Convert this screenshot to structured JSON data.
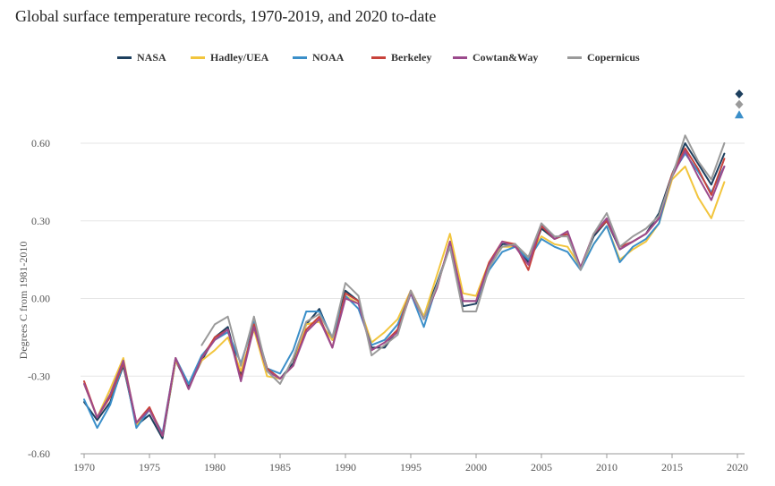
{
  "title": "Global surface temperature records, 1970-2019, and 2020 to-date",
  "chart_data": {
    "type": "line",
    "title": "Global surface temperature records, 1970-2019, and 2020 to-date",
    "xlabel": "",
    "ylabel": "Degrees C from 1981-2010",
    "xlim": [
      1970,
      2020
    ],
    "ylim": [
      -0.6,
      0.6
    ],
    "x_ticks": [
      1970,
      1975,
      1980,
      1985,
      1990,
      1995,
      2000,
      2005,
      2010,
      2015,
      2020
    ],
    "x_tick_labels": [
      "1970",
      "1975",
      "1980",
      "1985",
      "1990",
      "1995",
      "2000",
      "2005",
      "2010",
      "2015",
      "2020"
    ],
    "y_ticks": [
      -0.6,
      -0.3,
      0.0,
      0.3,
      0.6
    ],
    "y_tick_labels": [
      "-0.60",
      "-0.30",
      "0.00",
      "0.30",
      "0.60"
    ],
    "grid": "horizontal",
    "legend_position": "top-center",
    "x": [
      1970,
      1971,
      1972,
      1973,
      1974,
      1975,
      1976,
      1977,
      1978,
      1979,
      1980,
      1981,
      1982,
      1983,
      1984,
      1985,
      1986,
      1987,
      1988,
      1989,
      1990,
      1991,
      1992,
      1993,
      1994,
      1995,
      1996,
      1997,
      1998,
      1999,
      2000,
      2001,
      2002,
      2003,
      2004,
      2005,
      2006,
      2007,
      2008,
      2009,
      2010,
      2011,
      2012,
      2013,
      2014,
      2015,
      2016,
      2017,
      2018,
      2019
    ],
    "series": [
      {
        "name": "NASA",
        "color": "#1d3f5e",
        "values": [
          -0.4,
          -0.47,
          -0.4,
          -0.26,
          -0.49,
          -0.45,
          -0.54,
          -0.24,
          -0.34,
          -0.24,
          -0.15,
          -0.11,
          -0.3,
          -0.1,
          -0.27,
          -0.31,
          -0.25,
          -0.1,
          -0.04,
          -0.16,
          0.03,
          -0.01,
          -0.19,
          -0.19,
          -0.12,
          0.03,
          -0.07,
          0.06,
          0.2,
          -0.03,
          -0.02,
          0.13,
          0.21,
          0.21,
          0.14,
          0.27,
          0.23,
          0.25,
          0.12,
          0.24,
          0.3,
          0.19,
          0.22,
          0.25,
          0.33,
          0.48,
          0.6,
          0.52,
          0.44,
          0.56
        ]
      },
      {
        "name": "Hadley/UEA",
        "color": "#f2c53d",
        "values": [
          -0.33,
          -0.46,
          -0.35,
          -0.23,
          -0.49,
          -0.43,
          -0.53,
          -0.24,
          -0.33,
          -0.24,
          -0.2,
          -0.15,
          -0.28,
          -0.12,
          -0.3,
          -0.31,
          -0.26,
          -0.1,
          -0.09,
          -0.16,
          0.01,
          -0.02,
          -0.17,
          -0.13,
          -0.08,
          0.03,
          -0.07,
          0.09,
          0.25,
          0.02,
          0.01,
          0.14,
          0.2,
          0.2,
          0.16,
          0.24,
          0.21,
          0.2,
          0.12,
          0.21,
          0.28,
          0.15,
          0.19,
          0.22,
          0.29,
          0.46,
          0.51,
          0.39,
          0.31,
          0.45
        ]
      },
      {
        "name": "NOAA",
        "color": "#3b8fc9",
        "values": [
          -0.39,
          -0.5,
          -0.41,
          -0.25,
          -0.5,
          -0.43,
          -0.52,
          -0.23,
          -0.33,
          -0.22,
          -0.16,
          -0.13,
          -0.25,
          -0.09,
          -0.27,
          -0.29,
          -0.2,
          -0.05,
          -0.05,
          -0.15,
          0.01,
          -0.04,
          -0.18,
          -0.16,
          -0.1,
          0.02,
          -0.11,
          0.05,
          0.21,
          -0.01,
          -0.01,
          0.11,
          0.18,
          0.2,
          0.15,
          0.23,
          0.2,
          0.18,
          0.11,
          0.21,
          0.28,
          0.14,
          0.2,
          0.23,
          0.29,
          0.48,
          0.56,
          0.49,
          0.41,
          0.51
        ]
      },
      {
        "name": "Berkeley",
        "color": "#c8423b",
        "values": [
          -0.32,
          -0.46,
          -0.38,
          -0.25,
          -0.48,
          -0.42,
          -0.53,
          -0.23,
          -0.35,
          -0.23,
          -0.15,
          -0.12,
          -0.31,
          -0.1,
          -0.27,
          -0.31,
          -0.26,
          -0.12,
          -0.07,
          -0.19,
          0.02,
          -0.01,
          -0.2,
          -0.17,
          -0.12,
          0.03,
          -0.08,
          0.04,
          0.22,
          -0.01,
          -0.01,
          0.14,
          0.22,
          0.21,
          0.11,
          0.28,
          0.23,
          0.25,
          0.12,
          0.25,
          0.3,
          0.2,
          0.22,
          0.25,
          0.31,
          0.48,
          0.58,
          0.5,
          0.4,
          0.54
        ]
      },
      {
        "name": "Cowtan&Way",
        "color": "#9b4a8c",
        "values": [
          -0.33,
          -0.46,
          -0.37,
          -0.24,
          -0.48,
          -0.43,
          -0.53,
          -0.23,
          -0.35,
          -0.23,
          -0.16,
          -0.12,
          -0.32,
          -0.11,
          -0.28,
          -0.31,
          -0.26,
          -0.13,
          -0.08,
          -0.19,
          0.0,
          -0.02,
          -0.2,
          -0.17,
          -0.13,
          0.02,
          -0.08,
          0.04,
          0.22,
          -0.01,
          -0.01,
          0.13,
          0.22,
          0.2,
          0.13,
          0.29,
          0.23,
          0.26,
          0.12,
          0.25,
          0.31,
          0.19,
          0.22,
          0.25,
          0.31,
          0.47,
          0.57,
          0.47,
          0.38,
          0.51
        ]
      },
      {
        "name": "Copernicus",
        "color": "#9a9a9a",
        "values": [
          null,
          null,
          null,
          null,
          null,
          null,
          null,
          null,
          null,
          -0.18,
          -0.1,
          -0.07,
          -0.26,
          -0.07,
          -0.28,
          -0.33,
          -0.23,
          -0.09,
          -0.06,
          -0.15,
          0.06,
          0.01,
          -0.22,
          -0.18,
          -0.14,
          0.03,
          -0.08,
          0.05,
          0.2,
          -0.05,
          -0.05,
          0.12,
          0.2,
          0.21,
          0.16,
          0.29,
          0.24,
          0.24,
          0.11,
          0.25,
          0.33,
          0.2,
          0.24,
          0.27,
          0.32,
          0.47,
          0.63,
          0.53,
          0.46,
          0.6
        ]
      }
    ],
    "to_date_2020": [
      {
        "name": "NASA",
        "value": 0.79,
        "marker": "diamond",
        "color": "#1d3f5e"
      },
      {
        "name": "Copernicus",
        "value": 0.75,
        "marker": "diamond",
        "color": "#9a9a9a"
      },
      {
        "name": "NOAA",
        "value": 0.71,
        "marker": "triangle",
        "color": "#3b8fc9"
      }
    ]
  }
}
